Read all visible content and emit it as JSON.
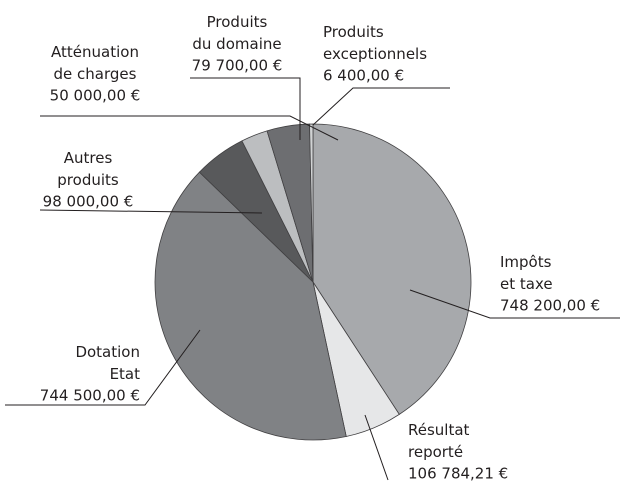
{
  "chart_data": {
    "type": "pie",
    "categories": [
      "Impôts\net taxe",
      "Résultat\nreporté",
      "Dotation\nEtat",
      "Autres\nproduits",
      "Atténuation\nde charges",
      "Produits\ndu domaine",
      "Produits\nexceptionnels"
    ],
    "values": [
      748200,
      106784.21,
      744500,
      98000,
      50000,
      79700,
      6400
    ],
    "value_labels": [
      "748 200,00 €",
      "106 784,21 €",
      "744 500,00 €",
      "98 000,00 €",
      "50 000,00 €",
      "79 700,00 €",
      "6 400,00 €"
    ],
    "colors": [
      "#a7a9ac",
      "#e6e7e8",
      "#808285",
      "#58595b",
      "#bcbec0",
      "#6d6e71",
      "#d1d3d4"
    ]
  }
}
